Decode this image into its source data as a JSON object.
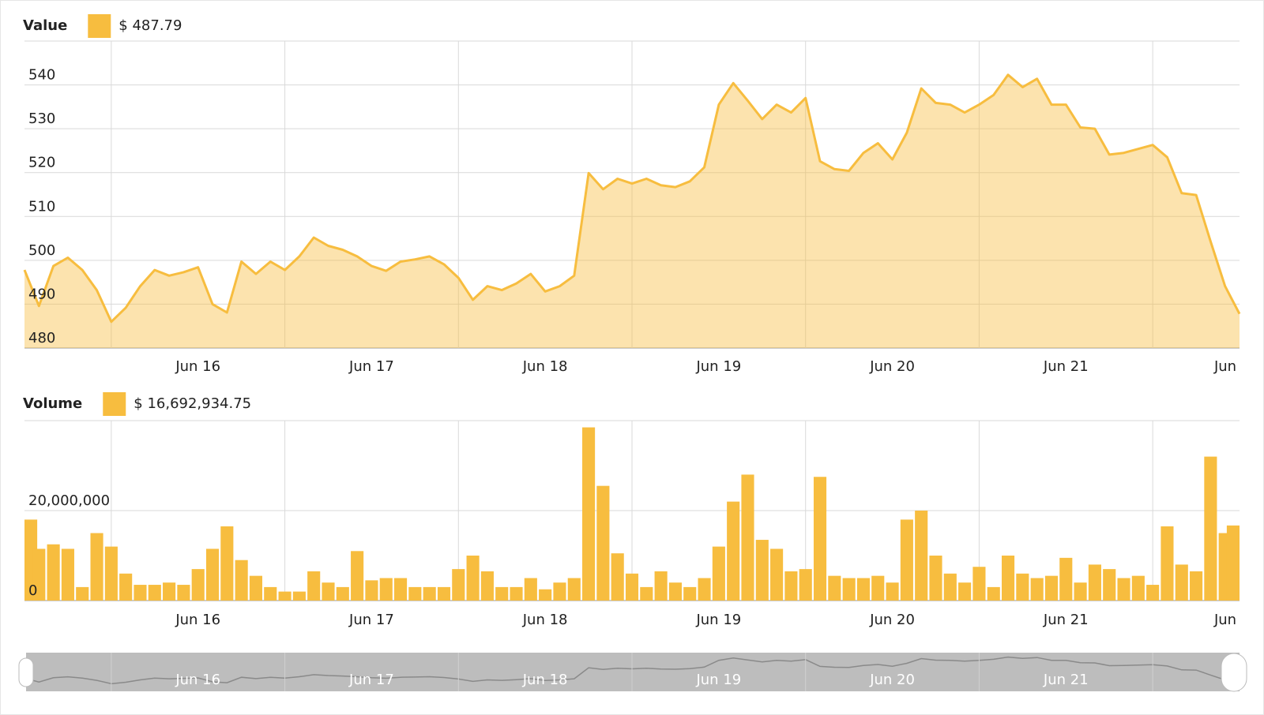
{
  "chart_data": [
    {
      "type": "area",
      "categories": [
        null,
        null,
        null,
        null,
        null,
        null,
        null,
        null,
        null,
        null,
        null,
        null,
        "Jun 16",
        null,
        null,
        null,
        null,
        null,
        null,
        null,
        null,
        null,
        null,
        null,
        "Jun 17",
        null,
        null,
        null,
        null,
        null,
        null,
        null,
        null,
        null,
        null,
        null,
        "Jun 18",
        null,
        null,
        null,
        null,
        null,
        null,
        null,
        null,
        null,
        null,
        null,
        "Jun 19",
        null,
        null,
        null,
        null,
        null,
        null,
        null,
        null,
        null,
        null,
        null,
        "Jun 20",
        null,
        null,
        null,
        null,
        null,
        null,
        null,
        null,
        null,
        null,
        null,
        "Jun 21",
        null,
        null,
        null,
        null,
        null,
        null,
        null,
        null,
        null,
        null,
        null,
        "Jun"
      ],
      "series": [
        {
          "name": "Value",
          "color": "#f7bd3f",
          "values": [
            497.8,
            489.6,
            498.7,
            500.6,
            497.8,
            493.2,
            486.0,
            489.2,
            494.1,
            497.8,
            496.5,
            497.3,
            498.4,
            490.0,
            488.1,
            499.7,
            496.9,
            499.7,
            497.8,
            500.9,
            505.2,
            503.3,
            502.4,
            500.9,
            498.7,
            497.6,
            499.7,
            500.2,
            500.9,
            499.1,
            496.0,
            491.0,
            494.1,
            493.2,
            494.7,
            496.9,
            492.9,
            494.1,
            496.5,
            519.9,
            516.2,
            518.6,
            517.5,
            518.6,
            517.1,
            516.7,
            518.0,
            521.2,
            535.5,
            540.4,
            536.4,
            532.2,
            535.5,
            533.7,
            537.0,
            522.6,
            520.8,
            520.4,
            524.5,
            526.7,
            523.0,
            529.1,
            539.2,
            535.9,
            535.5,
            533.7,
            535.5,
            537.7,
            542.3,
            539.5,
            541.4,
            535.5,
            535.5,
            530.3,
            530.0,
            524.1,
            524.5,
            525.4,
            526.3,
            523.5,
            515.3,
            514.9,
            504.3,
            494.1,
            487.79
          ]
        }
      ],
      "legend_value": "$ 487.79",
      "ylim": [
        480,
        550
      ],
      "yticks": [
        480,
        490,
        500,
        510,
        520,
        530,
        540
      ],
      "grid": true
    },
    {
      "type": "bar",
      "categories": [
        null,
        null,
        null,
        null,
        null,
        null,
        null,
        null,
        null,
        null,
        null,
        null,
        "Jun 16",
        null,
        null,
        null,
        null,
        null,
        null,
        null,
        null,
        null,
        null,
        null,
        "Jun 17",
        null,
        null,
        null,
        null,
        null,
        null,
        null,
        null,
        null,
        null,
        null,
        "Jun 18",
        null,
        null,
        null,
        null,
        null,
        null,
        null,
        null,
        null,
        null,
        null,
        "Jun 19",
        null,
        null,
        null,
        null,
        null,
        null,
        null,
        null,
        null,
        null,
        null,
        "Jun 20",
        null,
        null,
        null,
        null,
        null,
        null,
        null,
        null,
        null,
        null,
        null,
        "Jun 21",
        null,
        null,
        null,
        null,
        null,
        null,
        null,
        null,
        null,
        null,
        null,
        "Jun"
      ],
      "series": [
        {
          "name": "Volume",
          "color": "#f7bd3f",
          "values": [
            18000000,
            11500000,
            12500000,
            11500000,
            3000000,
            15000000,
            12000000,
            6000000,
            3500000,
            3500000,
            4000000,
            3500000,
            7000000,
            11500000,
            16500000,
            9000000,
            5500000,
            3000000,
            2000000,
            2000000,
            6500000,
            4000000,
            3000000,
            11000000,
            4500000,
            5000000,
            5000000,
            3000000,
            3000000,
            3000000,
            7000000,
            10000000,
            6500000,
            3000000,
            3000000,
            5000000,
            2500000,
            4000000,
            5000000,
            38500000,
            25500000,
            10500000,
            6000000,
            3000000,
            6500000,
            4000000,
            3000000,
            5000000,
            12000000,
            22000000,
            28000000,
            13500000,
            11500000,
            6500000,
            7000000,
            27500000,
            5500000,
            5000000,
            5000000,
            5500000,
            4000000,
            18000000,
            20000000,
            10000000,
            6000000,
            4000000,
            7500000,
            3000000,
            10000000,
            6000000,
            5000000,
            5500000,
            9500000,
            4000000,
            8000000,
            7000000,
            5000000,
            5500000,
            3500000,
            16500000,
            8000000,
            6500000,
            32000000,
            15000000,
            16692934.75
          ]
        }
      ],
      "legend_value": "$ 16,692,934.75",
      "ylim": [
        0,
        40000000
      ],
      "yticks": [
        0,
        {
          "value": 20000000,
          "label": "20,000,000"
        }
      ],
      "grid": true
    }
  ]
}
